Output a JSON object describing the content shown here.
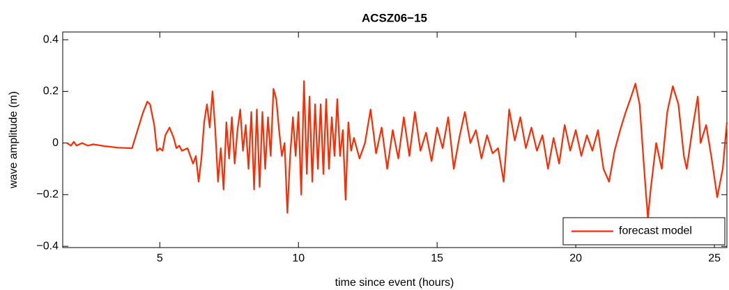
{
  "chart_data": {
    "type": "line",
    "title": "ACSZ06−15",
    "x_label": "time since event (hours)",
    "y_label": "wave amplitude (m)",
    "xlim": [
      1.5,
      25.45
    ],
    "ylim": [
      -0.405,
      0.43
    ],
    "xticks": [
      5,
      10,
      15,
      20,
      25
    ],
    "yticks": [
      {
        "value": -0.4,
        "label": "−0.4"
      },
      {
        "value": -0.2,
        "label": "−0.2"
      },
      0,
      0.2,
      0.4
    ],
    "legend": "lower right",
    "x": [
      1.65,
      1.8,
      1.9,
      2.0,
      2.2,
      2.4,
      2.6,
      3.0,
      3.5,
      4.0,
      4.2,
      4.4,
      4.55,
      4.65,
      4.8,
      4.9,
      5.0,
      5.1,
      5.2,
      5.35,
      5.5,
      5.6,
      5.7,
      5.8,
      6.0,
      6.2,
      6.3,
      6.4,
      6.5,
      6.6,
      6.7,
      6.8,
      6.9,
      7.0,
      7.1,
      7.2,
      7.3,
      7.4,
      7.5,
      7.6,
      7.7,
      7.8,
      7.9,
      8.0,
      8.1,
      8.2,
      8.3,
      8.4,
      8.5,
      8.6,
      8.7,
      8.8,
      8.9,
      9.0,
      9.1,
      9.2,
      9.3,
      9.4,
      9.5,
      9.6,
      9.7,
      9.8,
      9.9,
      10.0,
      10.1,
      10.2,
      10.3,
      10.4,
      10.5,
      10.6,
      10.7,
      10.8,
      10.9,
      11.0,
      11.1,
      11.2,
      11.3,
      11.4,
      11.5,
      11.6,
      11.7,
      11.8,
      11.9,
      12.0,
      12.2,
      12.4,
      12.6,
      12.8,
      13.0,
      13.2,
      13.4,
      13.6,
      13.8,
      14.0,
      14.2,
      14.4,
      14.6,
      14.8,
      15.0,
      15.2,
      15.4,
      15.6,
      15.8,
      16.0,
      16.2,
      16.4,
      16.6,
      16.8,
      17.0,
      17.2,
      17.4,
      17.6,
      17.8,
      18.0,
      18.2,
      18.4,
      18.6,
      18.8,
      19.0,
      19.2,
      19.4,
      19.6,
      19.8,
      20.0,
      20.2,
      20.4,
      20.6,
      20.8,
      21.0,
      21.2,
      21.4,
      21.6,
      21.8,
      22.0,
      22.15,
      22.3,
      22.5,
      22.6,
      22.7,
      22.9,
      23.1,
      23.3,
      23.5,
      23.7,
      23.9,
      24.0,
      24.2,
      24.4,
      24.5,
      24.7,
      24.9,
      25.1,
      25.3,
      25.45
    ],
    "series": [
      {
        "name": "forecast model",
        "color": "#ff2a00",
        "values": [
          0,
          -0.01,
          0.005,
          -0.01,
          0,
          -0.01,
          -0.005,
          -0.012,
          -0.018,
          -0.02,
          0.05,
          0.12,
          0.16,
          0.15,
          0.07,
          -0.03,
          -0.02,
          -0.03,
          0.03,
          0.06,
          0.02,
          -0.02,
          -0.01,
          -0.03,
          -0.02,
          -0.08,
          -0.05,
          -0.15,
          -0.06,
          0.08,
          0.15,
          0.06,
          0.2,
          0.05,
          -0.15,
          -0.02,
          -0.18,
          0.08,
          -0.06,
          0.1,
          -0.08,
          0.05,
          0.13,
          -0.03,
          0.07,
          -0.1,
          0.12,
          -0.18,
          0.13,
          -0.17,
          0.12,
          -0.1,
          0.1,
          -0.05,
          0.21,
          0.17,
          0.05,
          -0.05,
          0.0,
          -0.27,
          -0.05,
          0.1,
          -0.05,
          0.12,
          -0.2,
          0.24,
          -0.12,
          0.18,
          -0.15,
          0.15,
          -0.1,
          0.15,
          -0.12,
          0.17,
          -0.1,
          0.1,
          -0.05,
          0.17,
          -0.05,
          0.05,
          -0.22,
          0.08,
          -0.03,
          0.02,
          -0.06,
          0.0,
          0.13,
          -0.04,
          0.06,
          -0.1,
          0.05,
          -0.06,
          0.1,
          -0.05,
          0.12,
          -0.03,
          0.04,
          -0.07,
          0.06,
          -0.02,
          0.1,
          -0.1,
          0.02,
          0.12,
          0.0,
          0.05,
          -0.06,
          0.03,
          -0.04,
          -0.02,
          -0.15,
          0.13,
          0.01,
          0.1,
          -0.02,
          0.06,
          -0.03,
          0.03,
          -0.1,
          0.02,
          -0.08,
          0.07,
          -0.03,
          0.05,
          -0.05,
          0.03,
          -0.03,
          0.05,
          -0.1,
          -0.15,
          -0.03,
          0.05,
          0.12,
          0.18,
          0.23,
          0.15,
          -0.15,
          -0.29,
          -0.18,
          0.0,
          -0.1,
          0.12,
          0.22,
          0.15,
          -0.05,
          -0.1,
          0.05,
          0.18,
          0.0,
          0.07,
          -0.06,
          -0.21,
          -0.1,
          0.08
        ]
      }
    ]
  }
}
